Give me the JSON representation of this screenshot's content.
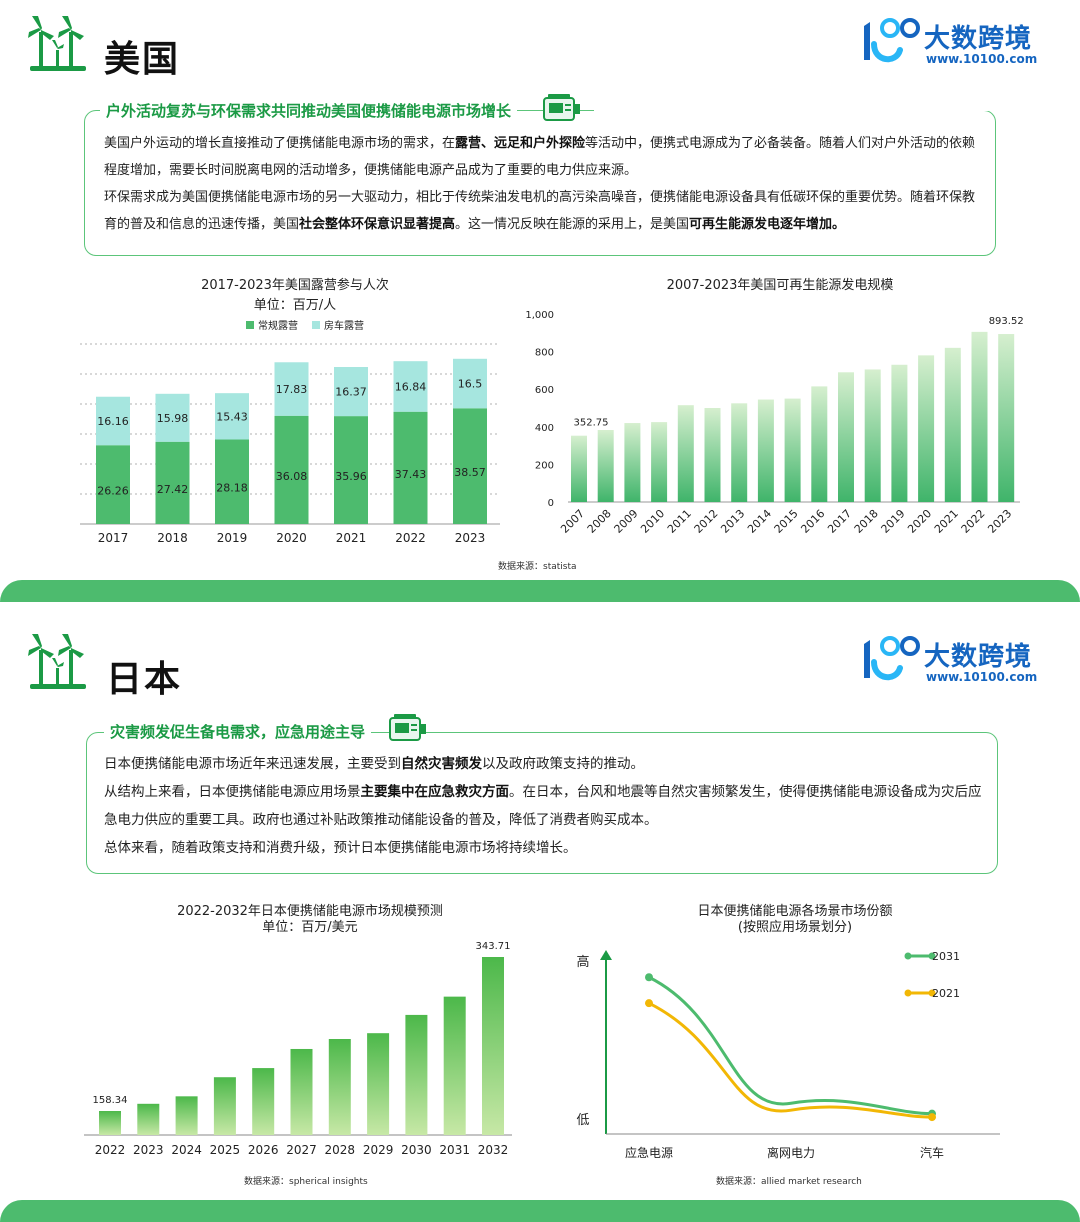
{
  "colors": {
    "accent": "#1b9a45",
    "box_border": "#5cc57a",
    "bar_green": "#4dbb6e",
    "bar_teal": "#a6e6df",
    "line_2031": "#4dbb6e",
    "line_2021": "#f2b705",
    "brand_blue": "#1565c0"
  },
  "brand": {
    "name": "大数跨境",
    "url": "www.10100.com"
  },
  "us": {
    "country": "美国",
    "box_title": "户外活动复苏与环保需求共同推动美国便携储能电源市场增长",
    "para1_a": "美国户外运动的增长直接推动了便携储能电源市场的需求，在",
    "para1_b": "露营、远足和户外探险",
    "para1_c": "等活动中，便携式电源成为了必备装备。随着人们对户外活动的依赖程度增加，需要长时间脱离电网的活动增多，便携储能电源产品成为了重要的电力供应来源。",
    "para2_a": "环保需求成为美国便携储能电源市场的另一大驱动力，相比于传统柴油发电机的高污染高噪音，便携储能电源设备具有低碳环保的重要优势。随着环保教育的普及和信息的迅速传播，美国",
    "para2_b": "社会整体环保意识显著提高",
    "para2_c": "。这一情况反映在能源的采用上，是美国",
    "para2_d": "可再生能源发电逐年增加。",
    "source": "数据来源：statista"
  },
  "jp": {
    "country": "日本",
    "box_title": "灾害频发促生备电需求，应急用途主导",
    "p1_a": "日本便携储能电源市场近年来迅速发展，主要受到",
    "p1_b": "自然灾害频发",
    "p1_c": "以及政府政策支持的推动。",
    "p2_a": "从结构上来看，日本便携储能电源应用场景",
    "p2_b": "主要集中在应急救灾方面",
    "p2_c": "。在日本，台风和地震等自然灾害频繁发生，使得便携储能电源设备成为灾后应急电力供应的重要工具。政府也通过补贴政策推动储能设备的普及，降低了消费者购买成本。",
    "p3": "总体来看，随着政策支持和消费升级，预计日本便携储能电源市场将持续增长。",
    "source1": "数据来源：spherical insights",
    "source2": "数据来源：allied market research"
  },
  "chart_data": [
    {
      "type": "bar",
      "stacked": true,
      "title": "2017-2023年美国露营参与人次",
      "subtitle": "单位：百万/人",
      "categories": [
        "2017",
        "2018",
        "2019",
        "2020",
        "2021",
        "2022",
        "2023"
      ],
      "series": [
        {
          "name": "常规露营",
          "values": [
            26.26,
            27.42,
            28.18,
            36.08,
            35.96,
            37.43,
            38.57
          ],
          "color": "#4dbb6e"
        },
        {
          "name": "房车露营",
          "values": [
            16.16,
            15.98,
            15.43,
            17.83,
            16.37,
            16.84,
            16.5
          ],
          "color": "#a6e6df"
        }
      ],
      "ylim": [
        0,
        60
      ],
      "legend": "top",
      "grid": true
    },
    {
      "type": "bar",
      "title": "2007-2023年美国可再生能源发电规模",
      "categories": [
        "2007",
        "2008",
        "2009",
        "2010",
        "2011",
        "2012",
        "2013",
        "2014",
        "2015",
        "2016",
        "2017",
        "2018",
        "2019",
        "2020",
        "2021",
        "2022",
        "2023"
      ],
      "values": [
        352.75,
        383,
        420,
        425,
        515,
        500,
        525,
        545,
        550,
        615,
        690,
        705,
        730,
        780,
        820,
        905,
        893.52
      ],
      "value_labels": [
        "352.75",
        "",
        "",
        "",
        "",
        "",
        "",
        "",
        "",
        "",
        "",
        "",
        "",
        "",
        "",
        "",
        "893.52"
      ],
      "yticks": [
        "0",
        "200",
        "400",
        "600",
        "800",
        "1,000"
      ],
      "ylim": [
        0,
        1000
      ],
      "grid": false
    },
    {
      "type": "bar",
      "title": "2022-2032年日本便携储能电源市场规模预测",
      "subtitle": "单位：百万/美元",
      "categories": [
        "2022",
        "2023",
        "2024",
        "2025",
        "2026",
        "2027",
        "2028",
        "2029",
        "2030",
        "2031",
        "2032"
      ],
      "values": [
        158.34,
        167,
        176,
        199,
        210,
        233,
        245,
        252,
        274,
        296,
        343.71
      ],
      "value_labels": [
        "158.34",
        "",
        "",
        "",
        "",
        "",
        "",
        "",
        "",
        "",
        "343.71"
      ],
      "ylim": [
        150,
        350
      ],
      "grid": false
    },
    {
      "type": "line",
      "title": "日本便携储能电源各场景市场份额",
      "subtitle": "(按照应用场景划分)",
      "categories": [
        "应急电源",
        "离网电力",
        "汽车"
      ],
      "y_high_label": "高",
      "y_low_label": "低",
      "series": [
        {
          "name": "2031",
          "values": [
            0.85,
            0.12,
            0.06
          ],
          "color": "#4dbb6e"
        },
        {
          "name": "2021",
          "values": [
            0.7,
            0.08,
            0.04
          ],
          "color": "#f2b705"
        }
      ],
      "legend": "top-right"
    }
  ]
}
